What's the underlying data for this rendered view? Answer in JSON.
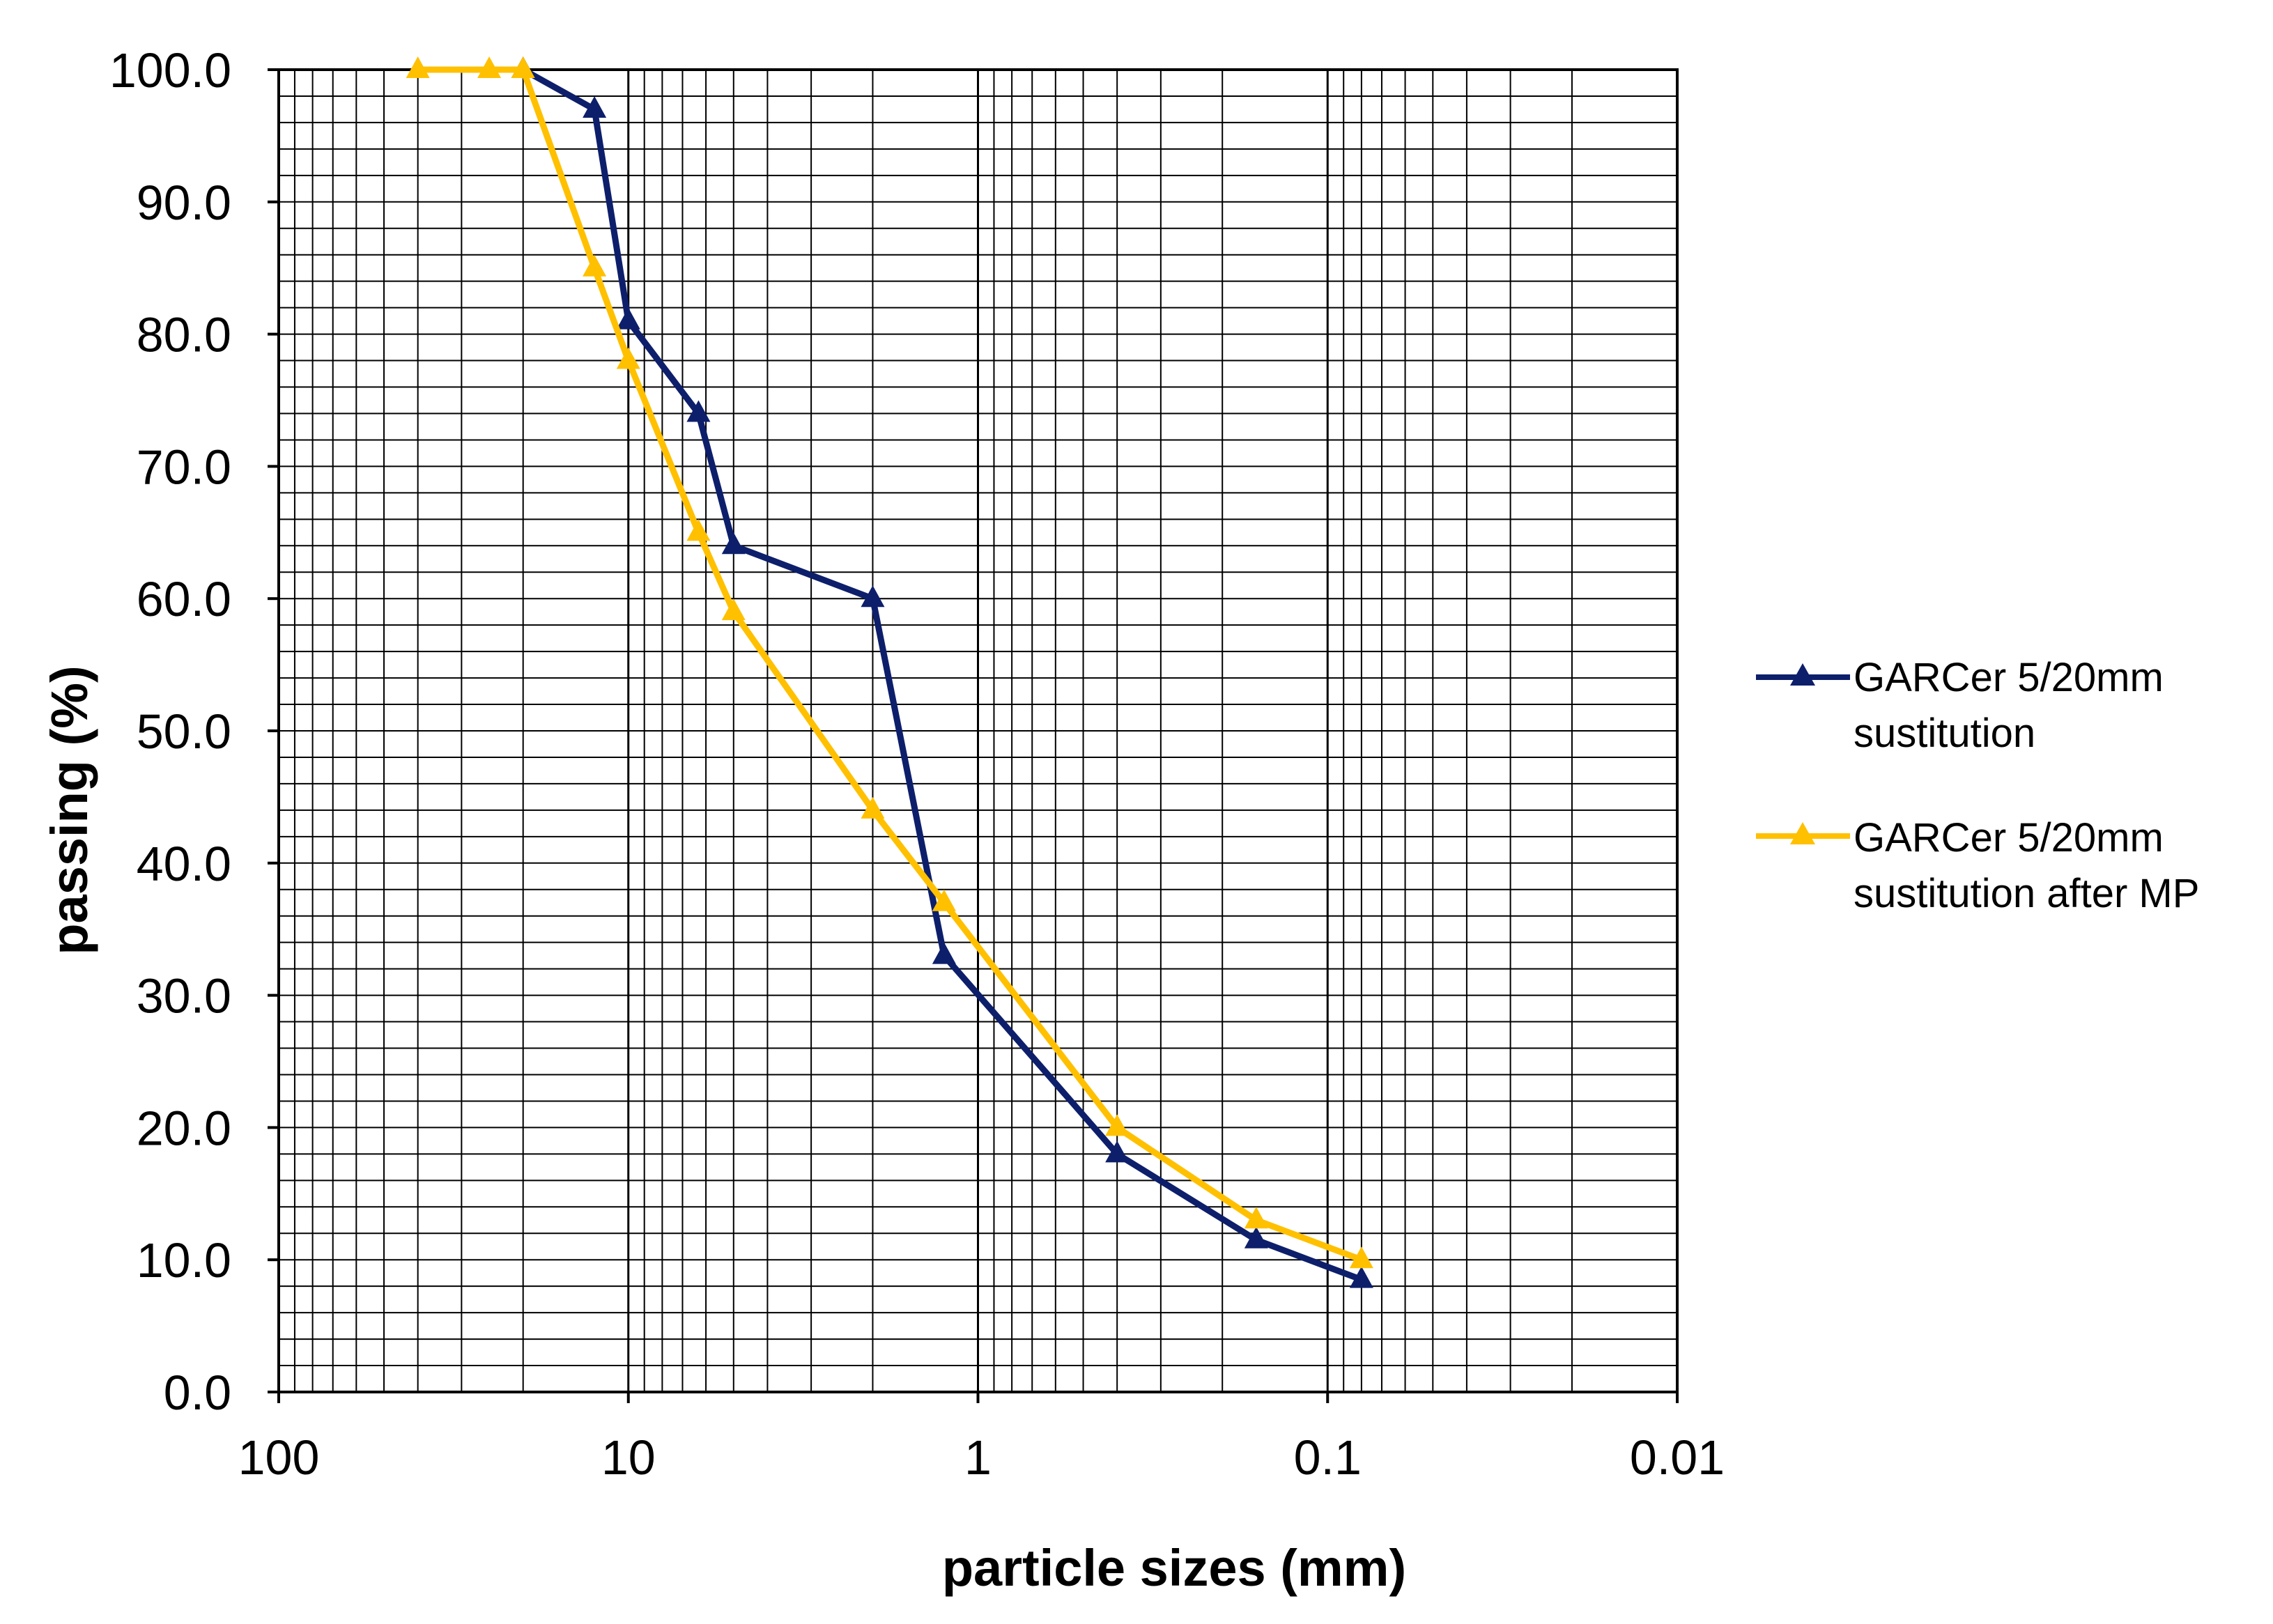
{
  "chart_data": {
    "type": "line",
    "xscale": "log",
    "x_reversed": true,
    "xlim": [
      100,
      0.01
    ],
    "ylim": [
      0,
      100
    ],
    "xlabel": "particle sizes (mm)",
    "ylabel": "passing (%)",
    "x_ticks": [
      100,
      10,
      1,
      0.1,
      0.01
    ],
    "x_tick_labels": [
      "100",
      "10",
      "1",
      "0.1",
      "0.01"
    ],
    "y_ticks": [
      0,
      10,
      20,
      30,
      40,
      50,
      60,
      70,
      80,
      90,
      100
    ],
    "y_tick_labels": [
      "0.0",
      "10.0",
      "20.0",
      "30.0",
      "40.0",
      "50.0",
      "60.0",
      "70.0",
      "80.0",
      "90.0",
      "100.0"
    ],
    "grid": true,
    "legend_position": "right",
    "series": [
      {
        "name": "GARCer 5/20mm sustitution",
        "legend_lines": [
          "GARCer 5/20mm",
          "sustitution"
        ],
        "color": "#0d1f6b",
        "marker": "triangle",
        "x": [
          20,
          12.5,
          10,
          6.3,
          5,
          2,
          1.25,
          0.4,
          0.16,
          0.08
        ],
        "y": [
          100,
          97,
          81,
          74,
          64,
          60,
          33,
          18,
          11.5,
          8.5
        ]
      },
      {
        "name": "GARCer 5/20mm sustitution after MP",
        "legend_lines": [
          "GARCer 5/20mm",
          "sustitution after MP"
        ],
        "color": "#ffc000",
        "marker": "triangle",
        "x": [
          40,
          25,
          20,
          12.5,
          10,
          6.3,
          5,
          2,
          1.25,
          0.4,
          0.16,
          0.08
        ],
        "y": [
          100,
          100,
          100,
          85,
          78,
          65,
          59,
          44,
          37,
          20,
          13,
          10
        ]
      }
    ]
  }
}
